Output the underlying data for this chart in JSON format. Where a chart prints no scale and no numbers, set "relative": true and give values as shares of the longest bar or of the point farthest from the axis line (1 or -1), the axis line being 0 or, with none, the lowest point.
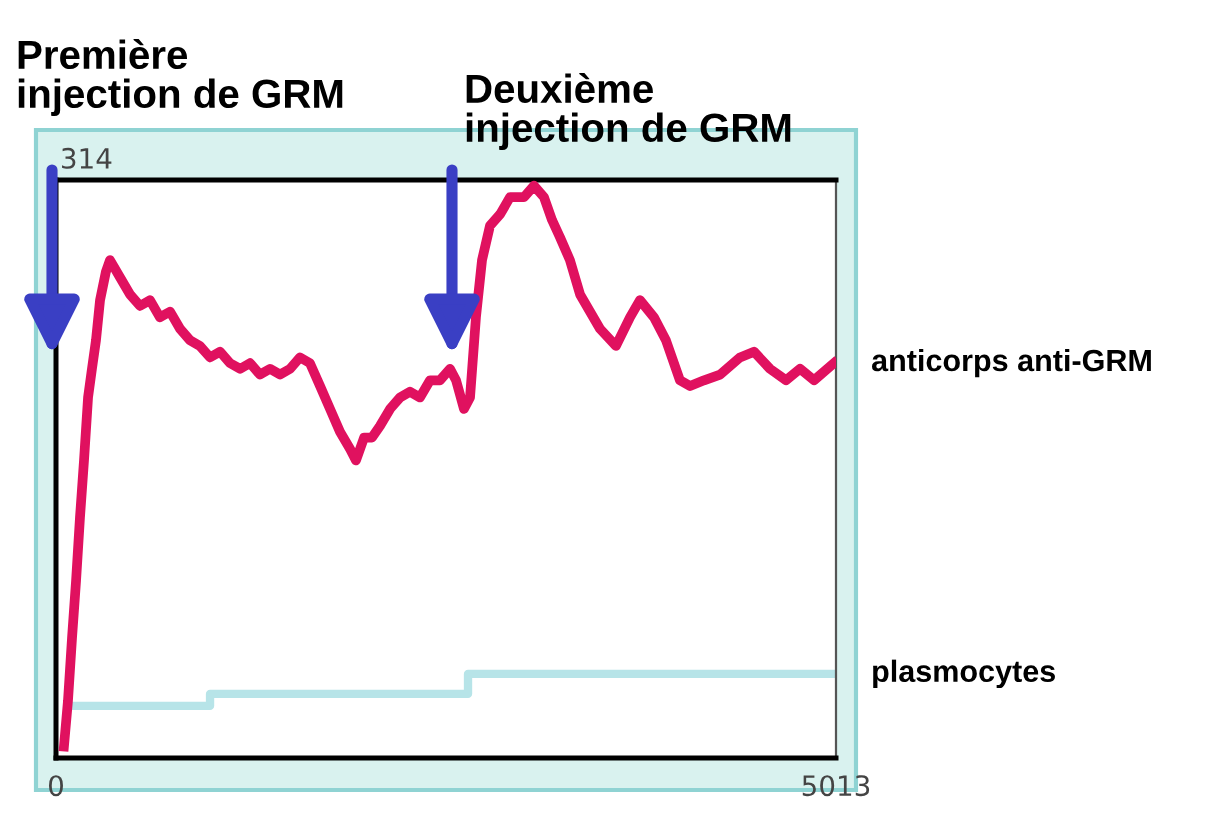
{
  "chart_data": {
    "type": "line",
    "relative": true,
    "xlim": [
      0,
      5013
    ],
    "xticks": [
      0,
      5013
    ],
    "series": [
      {
        "name": "anticorps anti-GRM",
        "color": "#e0115f",
        "x": [
          51,
          77,
          103,
          129,
          154,
          180,
          206,
          231,
          257,
          283,
          321,
          347,
          411,
          476,
          540,
          604,
          668,
          733,
          797,
          861,
          925,
          990,
          1054,
          1118,
          1183,
          1247,
          1311,
          1375,
          1440,
          1504,
          1568,
          1632,
          1697,
          1761,
          1825,
          1890,
          1928,
          1980,
          2031,
          2082,
          2147,
          2211,
          2275,
          2339,
          2404,
          2468,
          2532,
          2571,
          2622,
          2661,
          2699,
          2738,
          2789,
          2854,
          2918,
          3008,
          3072,
          3136,
          3188,
          3239,
          3303,
          3368,
          3496,
          3599,
          3689,
          3753,
          3843,
          3920,
          4010,
          4075,
          4165,
          4268,
          4396,
          4486,
          4589,
          4692,
          4782,
          4872,
          5000
        ],
        "values": [
          0.02,
          0.1,
          0.21,
          0.31,
          0.42,
          0.52,
          0.63,
          0.68,
          0.73,
          0.8,
          0.85,
          0.87,
          0.84,
          0.81,
          0.79,
          0.8,
          0.77,
          0.78,
          0.75,
          0.73,
          0.72,
          0.7,
          0.71,
          0.69,
          0.68,
          0.69,
          0.67,
          0.68,
          0.67,
          0.68,
          0.7,
          0.69,
          0.65,
          0.61,
          0.57,
          0.54,
          0.52,
          0.56,
          0.56,
          0.58,
          0.61,
          0.63,
          0.64,
          0.63,
          0.66,
          0.66,
          0.68,
          0.66,
          0.61,
          0.63,
          0.77,
          0.87,
          0.93,
          0.95,
          0.98,
          0.98,
          1.0,
          0.98,
          0.94,
          0.91,
          0.87,
          0.81,
          0.75,
          0.72,
          0.77,
          0.8,
          0.77,
          0.73,
          0.66,
          0.65,
          0.66,
          0.67,
          0.7,
          0.71,
          0.68,
          0.66,
          0.68,
          0.66,
          0.69
        ]
      },
      {
        "name": "plasmocytes",
        "type": "step",
        "color": "#b7e4e8",
        "x": [
          116,
          990,
          2648,
          4987
        ],
        "values": [
          0.091,
          0.112,
          0.147,
          0.147
        ]
      }
    ],
    "annotations": [
      "Première\ninjection de GRM",
      "Deuxième\ninjection de GRM",
      "314"
    ],
    "legend": false
  }
}
